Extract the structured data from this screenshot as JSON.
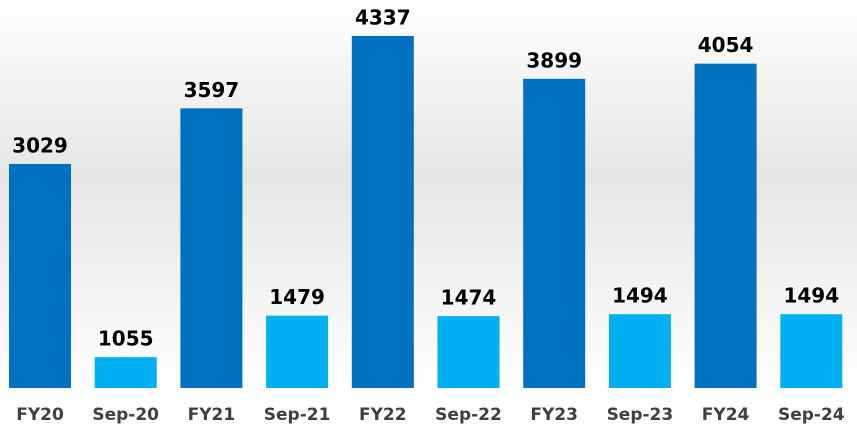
{
  "chart_data": {
    "type": "bar",
    "categories": [
      "FY20",
      "Sep-20",
      "FY21",
      "Sep-21",
      "FY22",
      "Sep-22",
      "FY23",
      "Sep-23",
      "FY24",
      "Sep-24"
    ],
    "values": [
      3029,
      1055,
      3597,
      1479,
      4337,
      1474,
      3899,
      1494,
      4054,
      1494
    ],
    "colors": [
      "#0070c0",
      "#00b0f0",
      "#0070c0",
      "#00b0f0",
      "#0070c0",
      "#00b0f0",
      "#0070c0",
      "#00b0f0",
      "#0070c0",
      "#00b0f0"
    ],
    "ylim": [
      740,
      4500
    ]
  }
}
